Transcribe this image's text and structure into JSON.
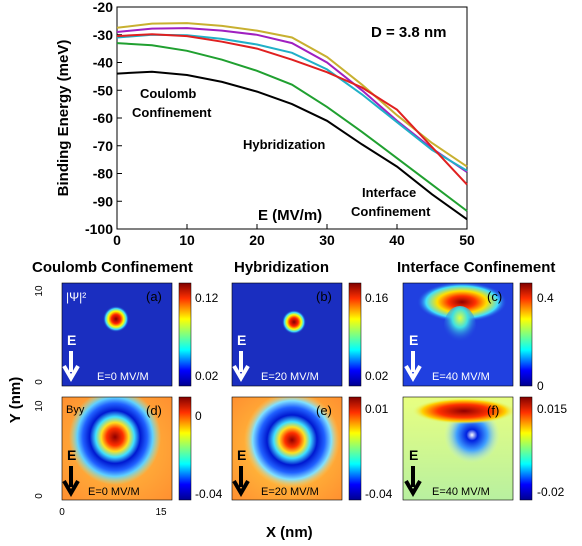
{
  "chart_data": [
    {
      "type": "line",
      "title": "D = 3.8 nm",
      "xlabel": "E (MV/m)",
      "ylabel": "Binding Energy (meV)",
      "xlim": [
        0,
        50
      ],
      "ylim": [
        -100,
        -20
      ],
      "xticks": [
        0,
        10,
        20,
        30,
        40,
        50
      ],
      "yticks": [
        -20,
        -30,
        -40,
        -50,
        -60,
        -70,
        -80,
        -90,
        -100
      ],
      "grid": false,
      "annotations": [
        "Coulomb Confinement",
        "Hybridization",
        "Interface Confinement"
      ],
      "series": [
        {
          "color": "#c8b030",
          "x": [
            0,
            5,
            10,
            15,
            20,
            25,
            30,
            35,
            40,
            45,
            50
          ],
          "y": [
            -27.5,
            -26,
            -25.8,
            -26.8,
            -28.5,
            -31,
            -38,
            -48,
            -59,
            -69,
            -77.5
          ]
        },
        {
          "color": "#a020c0",
          "x": [
            0,
            5,
            10,
            15,
            20,
            25,
            30,
            35,
            40,
            45,
            50
          ],
          "y": [
            -29,
            -27.8,
            -27.6,
            -28.5,
            -30,
            -33,
            -40,
            -50,
            -61,
            -71,
            -79.5
          ]
        },
        {
          "color": "#20b0c8",
          "x": [
            0,
            5,
            10,
            15,
            20,
            25,
            30,
            35,
            40,
            45,
            50
          ],
          "y": [
            -31,
            -30,
            -30.2,
            -31.5,
            -33.5,
            -36.5,
            -42.5,
            -51.5,
            -61.5,
            -71.5,
            -79
          ]
        },
        {
          "color": "#e02020",
          "x": [
            0,
            5,
            10,
            15,
            20,
            25,
            30,
            35,
            40,
            45,
            50
          ],
          "y": [
            -30.5,
            -29.8,
            -30.5,
            -32.5,
            -35,
            -39,
            -43.5,
            -49,
            -57,
            -70.5,
            -84
          ]
        },
        {
          "color": "#20a030",
          "x": [
            0,
            5,
            10,
            15,
            20,
            25,
            30,
            35,
            40,
            45,
            50
          ],
          "y": [
            -33,
            -33.8,
            -35.8,
            -39,
            -43,
            -48,
            -56,
            -65,
            -74.5,
            -84,
            -93.5
          ]
        },
        {
          "color": "#000000",
          "x": [
            0,
            5,
            10,
            15,
            20,
            25,
            30,
            35,
            40,
            45,
            50
          ],
          "y": [
            -44,
            -43.3,
            -44.5,
            -47,
            -50.5,
            -55,
            -61,
            -69.5,
            -77.5,
            -87.5,
            -96.5
          ]
        }
      ]
    },
    {
      "type": "heatmap",
      "panel_headers": [
        "Coulomb Confinement",
        "Hybridization",
        "Interface Confinement"
      ],
      "ylabel": "Y (nm)",
      "xlabel": "X (nm)",
      "y_ticks": [
        "10",
        "0"
      ],
      "x_ticks": [
        "0",
        "15"
      ],
      "arrow_label": "E",
      "panels": [
        {
          "tag": "(a)",
          "quantity": "|Ψ|²",
          "field": "E=0 MV/M",
          "cbar_top": "0.12",
          "cbar_bottom": "0.02"
        },
        {
          "tag": "(b)",
          "quantity": "",
          "field": "E=20 MV/M",
          "cbar_top": "0.16",
          "cbar_bottom": "0.02"
        },
        {
          "tag": "(c)",
          "quantity": "",
          "field": "E=40 MV/M",
          "cbar_top": "0.4",
          "cbar_bottom": "0"
        },
        {
          "tag": "(d)",
          "quantity": "Byy",
          "field": "E=0 MV/M",
          "cbar_top": "0",
          "cbar_bottom": "-0.04"
        },
        {
          "tag": "(e)",
          "quantity": "",
          "field": "E=20 MV/M",
          "cbar_top": "0.01",
          "cbar_bottom": "-0.04"
        },
        {
          "tag": "(f)",
          "quantity": "",
          "field": "E=40 MV/M",
          "cbar_top": "0.015",
          "cbar_bottom": "-0.02"
        }
      ]
    }
  ]
}
